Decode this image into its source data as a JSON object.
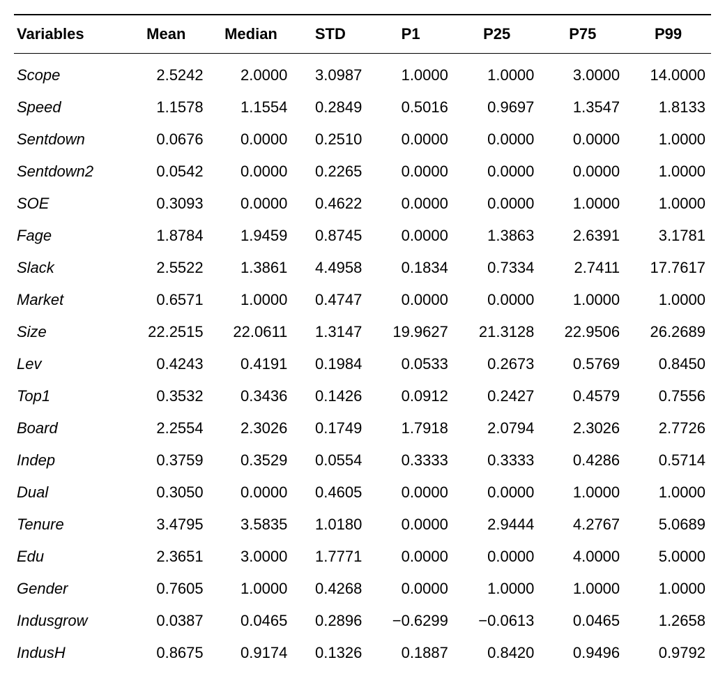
{
  "table": {
    "type": "table",
    "background_color": "#ffffff",
    "text_color": "#000000",
    "border_color": "#000000",
    "header_fontsize": 22,
    "cell_fontsize": 22,
    "header_fontweight": "bold",
    "first_column_italic": true,
    "columns": [
      {
        "label": "Variables",
        "align": "left"
      },
      {
        "label": "Mean",
        "align": "right"
      },
      {
        "label": "Median",
        "align": "right"
      },
      {
        "label": "STD",
        "align": "right"
      },
      {
        "label": "P1",
        "align": "right"
      },
      {
        "label": "P25",
        "align": "right"
      },
      {
        "label": "P75",
        "align": "right"
      },
      {
        "label": "P99",
        "align": "right"
      }
    ],
    "rows": [
      {
        "var": "Scope",
        "mean": "2.5242",
        "median": "2.0000",
        "std": "3.0987",
        "p1": "1.0000",
        "p25": "1.0000",
        "p75": "3.0000",
        "p99": "14.0000"
      },
      {
        "var": "Speed",
        "mean": "1.1578",
        "median": "1.1554",
        "std": "0.2849",
        "p1": "0.5016",
        "p25": "0.9697",
        "p75": "1.3547",
        "p99": "1.8133"
      },
      {
        "var": "Sentdown",
        "mean": "0.0676",
        "median": "0.0000",
        "std": "0.2510",
        "p1": "0.0000",
        "p25": "0.0000",
        "p75": "0.0000",
        "p99": "1.0000"
      },
      {
        "var": "Sentdown2",
        "mean": "0.0542",
        "median": "0.0000",
        "std": "0.2265",
        "p1": "0.0000",
        "p25": "0.0000",
        "p75": "0.0000",
        "p99": "1.0000"
      },
      {
        "var": "SOE",
        "mean": "0.3093",
        "median": "0.0000",
        "std": "0.4622",
        "p1": "0.0000",
        "p25": "0.0000",
        "p75": "1.0000",
        "p99": "1.0000"
      },
      {
        "var": "Fage",
        "mean": "1.8784",
        "median": "1.9459",
        "std": "0.8745",
        "p1": "0.0000",
        "p25": "1.3863",
        "p75": "2.6391",
        "p99": "3.1781"
      },
      {
        "var": "Slack",
        "mean": "2.5522",
        "median": "1.3861",
        "std": "4.4958",
        "p1": "0.1834",
        "p25": "0.7334",
        "p75": "2.7411",
        "p99": "17.7617"
      },
      {
        "var": "Market",
        "mean": "0.6571",
        "median": "1.0000",
        "std": "0.4747",
        "p1": "0.0000",
        "p25": "0.0000",
        "p75": "1.0000",
        "p99": "1.0000"
      },
      {
        "var": "Size",
        "mean": "22.2515",
        "median": "22.0611",
        "std": "1.3147",
        "p1": "19.9627",
        "p25": "21.3128",
        "p75": "22.9506",
        "p99": "26.2689"
      },
      {
        "var": "Lev",
        "mean": "0.4243",
        "median": "0.4191",
        "std": "0.1984",
        "p1": "0.0533",
        "p25": "0.2673",
        "p75": "0.5769",
        "p99": "0.8450"
      },
      {
        "var": "Top1",
        "mean": "0.3532",
        "median": "0.3436",
        "std": "0.1426",
        "p1": "0.0912",
        "p25": "0.2427",
        "p75": "0.4579",
        "p99": "0.7556"
      },
      {
        "var": "Board",
        "mean": "2.2554",
        "median": "2.3026",
        "std": "0.1749",
        "p1": "1.7918",
        "p25": "2.0794",
        "p75": "2.3026",
        "p99": "2.7726"
      },
      {
        "var": "Indep",
        "mean": "0.3759",
        "median": "0.3529",
        "std": "0.0554",
        "p1": "0.3333",
        "p25": "0.3333",
        "p75": "0.4286",
        "p99": "0.5714"
      },
      {
        "var": "Dual",
        "mean": "0.3050",
        "median": "0.0000",
        "std": "0.4605",
        "p1": "0.0000",
        "p25": "0.0000",
        "p75": "1.0000",
        "p99": "1.0000"
      },
      {
        "var": "Tenure",
        "mean": "3.4795",
        "median": "3.5835",
        "std": "1.0180",
        "p1": "0.0000",
        "p25": "2.9444",
        "p75": "4.2767",
        "p99": "5.0689"
      },
      {
        "var": "Edu",
        "mean": "2.3651",
        "median": "3.0000",
        "std": "1.7771",
        "p1": "0.0000",
        "p25": "0.0000",
        "p75": "4.0000",
        "p99": "5.0000"
      },
      {
        "var": "Gender",
        "mean": "0.7605",
        "median": "1.0000",
        "std": "0.4268",
        "p1": "0.0000",
        "p25": "1.0000",
        "p75": "1.0000",
        "p99": "1.0000"
      },
      {
        "var": "Indusgrow",
        "mean": "0.0387",
        "median": "0.0465",
        "std": "0.2896",
        "p1": "−0.6299",
        "p25": "−0.0613",
        "p75": "0.0465",
        "p99": "1.2658"
      },
      {
        "var": "IndusH",
        "mean": "0.8675",
        "median": "0.9174",
        "std": "0.1326",
        "p1": "0.1887",
        "p25": "0.8420",
        "p75": "0.9496",
        "p99": "0.9792"
      }
    ]
  }
}
